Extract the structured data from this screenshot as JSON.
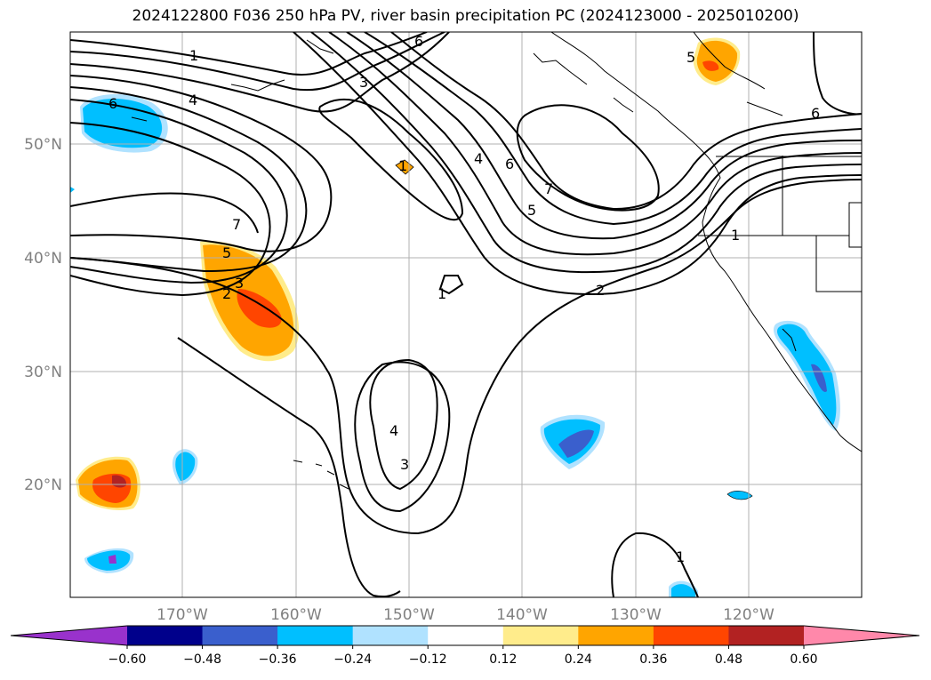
{
  "title": "2024122800 F036 250 hPa PV, river basin precipitation PC (2024123000 - 2025010200)",
  "lat_labels": [
    "50°N",
    "40°N",
    "30°N",
    "20°N"
  ],
  "lon_labels": [
    "170°W",
    "160°W",
    "150°W",
    "140°W",
    "130°W",
    "120°W"
  ],
  "colorbar": {
    "ticks": [
      "−0.60",
      "−0.48",
      "−0.36",
      "−0.24",
      "−0.12",
      "0.12",
      "0.24",
      "0.36",
      "0.48",
      "0.60"
    ],
    "colors": [
      "#9932cc",
      "#00008b",
      "#3a5fcd",
      "#00bfff",
      "#b0e2ff",
      "#ffffff",
      "#ffec8b",
      "#ffa500",
      "#ff4500",
      "#b22222",
      "#ff88aa"
    ]
  },
  "contour_labels": [
    "1",
    "3",
    "6",
    "4",
    "6",
    "7",
    "6",
    "5",
    "4",
    "7",
    "1",
    "5",
    "3",
    "2",
    "1",
    "2",
    "1",
    "4",
    "3",
    "1",
    "6",
    "5"
  ],
  "colors": {
    "pv_contour": "#000000",
    "coast": "#000000",
    "grid": "#b0b0b0"
  }
}
